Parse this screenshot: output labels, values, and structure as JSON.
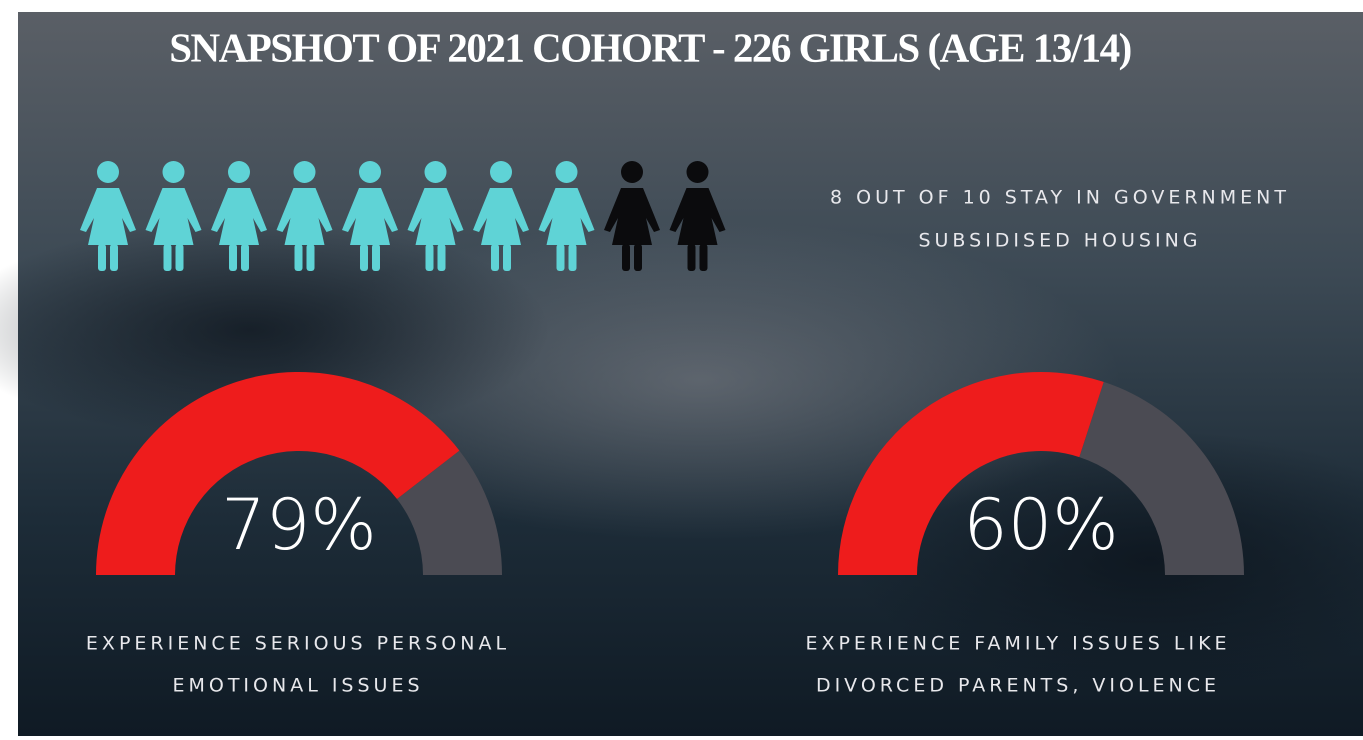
{
  "title": "SNAPSHOT OF 2021 COHORT - 226 GIRLS (AGE 13/14)",
  "pictogram": {
    "filled": 8,
    "total": 10,
    "filled_color": "#5fd3d6",
    "empty_color": "#0b0b0d",
    "caption": [
      "8 OUT OF 10 STAY IN GOVERNMENT",
      "SUBSIDISED HOUSING"
    ]
  },
  "gauges": [
    {
      "value": 79,
      "value_label": "79%",
      "max": 100,
      "color": "#ee1c1c",
      "rest_color": "#4b4b53",
      "caption": [
        "EXPERIENCE SERIOUS PERSONAL",
        "EMOTIONAL ISSUES"
      ]
    },
    {
      "value": 60,
      "value_label": "60%",
      "max": 100,
      "color": "#ee1c1c",
      "rest_color": "#4b4b53",
      "caption": [
        "EXPERIENCE FAMILY ISSUES LIKE",
        "DIVORCED PARENTS, VIOLENCE"
      ]
    }
  ]
}
